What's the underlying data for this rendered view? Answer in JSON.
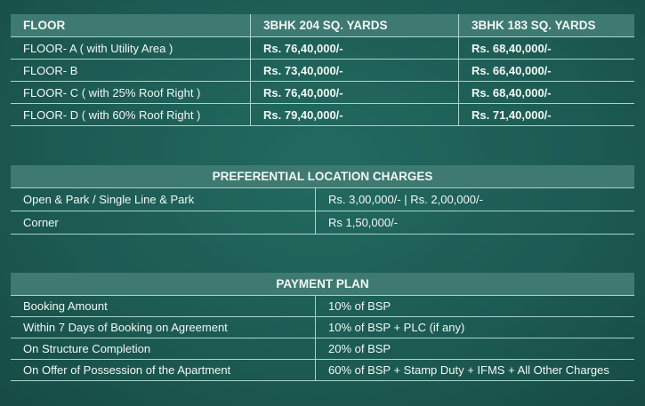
{
  "floor_table": {
    "headers": [
      "FLOOR",
      "3BHK  204 SQ. YARDS",
      "3BHK 183 SQ. YARDS"
    ],
    "rows": [
      [
        "FLOOR- A ( with Utility Area )",
        "Rs. 76,40,000/-",
        "Rs. 68,40,000/-"
      ],
      [
        "FLOOR- B",
        "Rs. 73,40,000/-",
        "Rs. 66,40,000/-"
      ],
      [
        "FLOOR- C ( with 25% Roof Right )",
        "Rs. 76,40,000/-",
        "Rs. 68,40,000/-"
      ],
      [
        "FLOOR- D ( with 60% Roof Right )",
        "Rs. 79,40,000/-",
        "Rs. 71,40,000/-"
      ]
    ]
  },
  "plc_table": {
    "title": "PREFERENTIAL LOCATION CHARGES",
    "rows": [
      [
        "Open & Park / Single Line & Park",
        "Rs. 3,00,000/- | Rs. 2,00,000/-"
      ],
      [
        "Corner",
        "Rs 1,50,000/-"
      ]
    ]
  },
  "payment_table": {
    "title": "PAYMENT PLAN",
    "rows": [
      [
        "Booking Amount",
        "10%  of BSP"
      ],
      [
        "Within 7 Days of Booking on Agreement",
        "10%  of BSP + PLC (if any)"
      ],
      [
        "On Structure Completion",
        "20%  of BSP"
      ],
      [
        "On Offer of Possession of the Apartment",
        "60%  of BSP + Stamp Duty + IFMS + All Other Charges"
      ]
    ]
  },
  "colors": {
    "background": "#1c5a52",
    "header_band": "#3e7a72",
    "lines": "#a9d3cb"
  }
}
